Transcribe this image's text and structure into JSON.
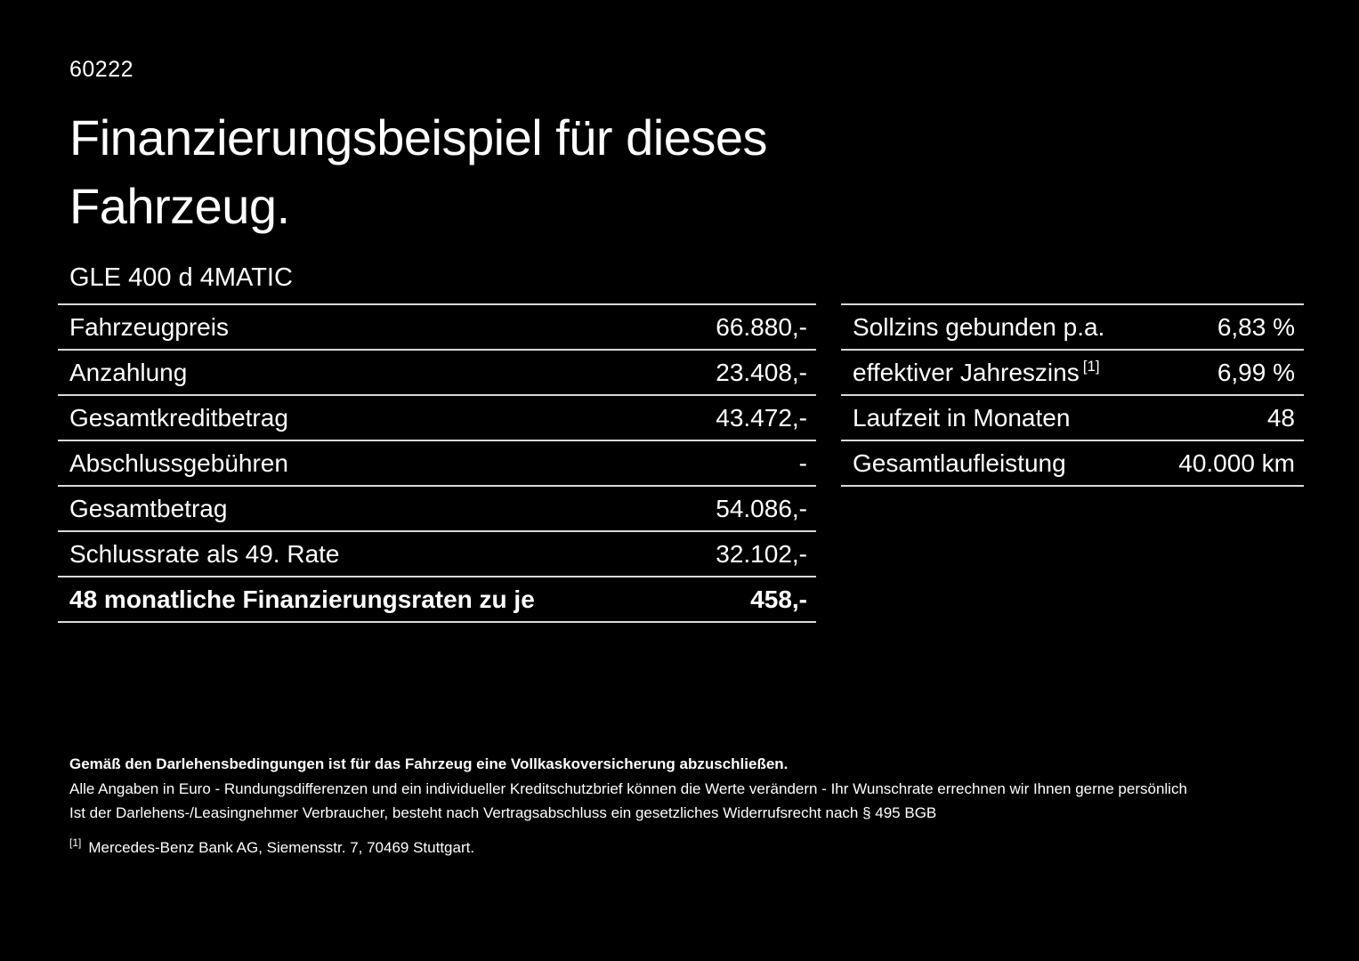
{
  "page": {
    "code": "60222",
    "title": "Finanzierungsbeispiel für dieses Fahrzeug.",
    "vehicle": "GLE 400 d 4MATIC"
  },
  "left_table": {
    "rows": [
      {
        "label": "Fahrzeugpreis",
        "value": "66.880,-"
      },
      {
        "label": "Anzahlung",
        "value": "23.408,-"
      },
      {
        "label": "Gesamtkreditbetrag",
        "value": "43.472,-"
      },
      {
        "label": "Abschlussgebühren",
        "value": "-"
      },
      {
        "label": "Gesamtbetrag",
        "value": "54.086,-"
      },
      {
        "label": "Schlussrate als 49. Rate",
        "value": "32.102,-"
      },
      {
        "label": "48 monatliche Finanzierungsraten zu je",
        "value": "458,-"
      }
    ]
  },
  "right_table": {
    "rows": [
      {
        "label": "Sollzins gebunden p.a.",
        "value": "6,83 %"
      },
      {
        "label": "effektiver Jahreszins",
        "sup": "[1]",
        "value": "6,99 %"
      },
      {
        "label": "Laufzeit in Monaten",
        "value": "48"
      },
      {
        "label": "Gesamtlaufleistung",
        "value": "40.000 km"
      }
    ]
  },
  "footnotes": {
    "bold_note": "Gemäß den Darlehensbedingungen ist für das Fahrzeug eine Vollkaskoversicherung abzuschließen.",
    "note1": "Alle Angaben in Euro - Rundungsdifferenzen und ein individueller Kreditschutzbrief können die Werte verändern - Ihr Wunschrate errechnen wir Ihnen gerne persönlich",
    "note2": "Ist der Darlehens-/Leasingnehmer Verbraucher, besteht nach Vertragsabschluss ein gesetzliches Widerrufsrecht nach § 495 BGB",
    "ref_marker": "[1]",
    "ref_text": "Mercedes-Benz Bank AG, Siemensstr. 7, 70469 Stuttgart."
  }
}
